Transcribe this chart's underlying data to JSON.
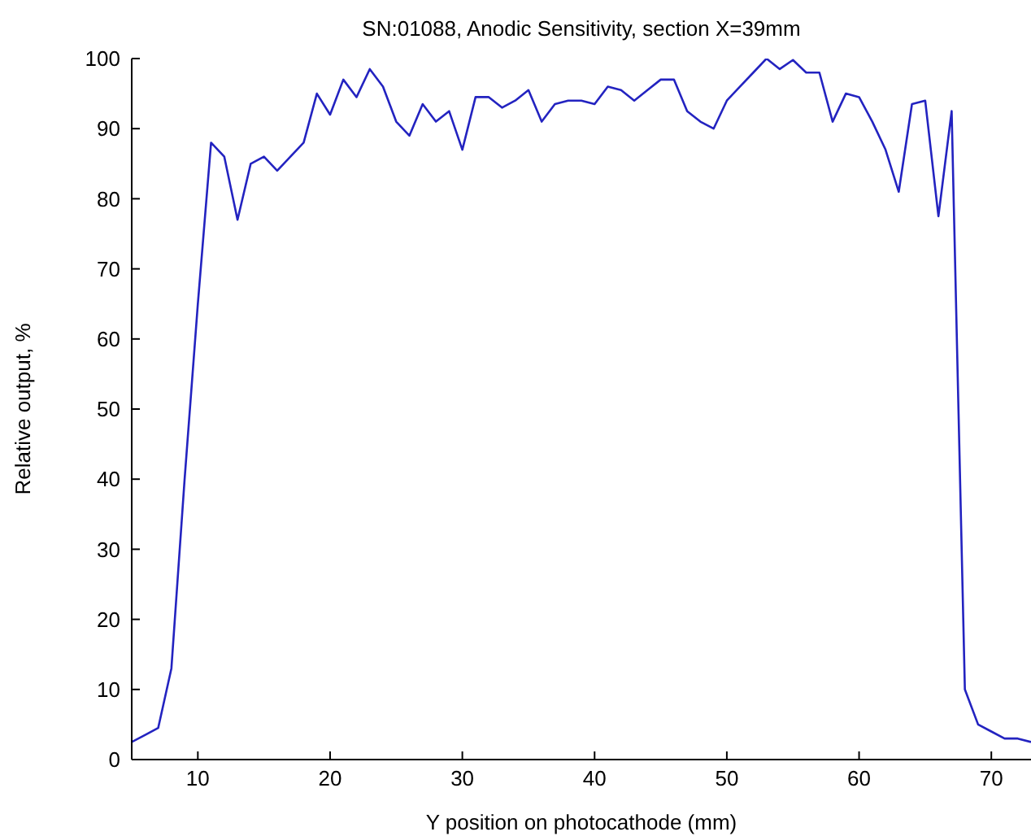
{
  "chart_data": {
    "type": "line",
    "title": "SN:01088, Anodic Sensitivity, section X=39mm",
    "xlabel": "Y position on photocathode (mm)",
    "ylabel": "Relative output, %",
    "x": [
      5,
      6,
      7,
      8,
      9,
      10,
      11,
      12,
      13,
      14,
      15,
      16,
      17,
      18,
      19,
      20,
      21,
      22,
      23,
      24,
      25,
      26,
      27,
      28,
      29,
      30,
      31,
      32,
      33,
      34,
      35,
      36,
      37,
      38,
      39,
      40,
      41,
      42,
      43,
      44,
      45,
      46,
      47,
      48,
      49,
      50,
      51,
      52,
      53,
      54,
      55,
      56,
      57,
      58,
      59,
      60,
      61,
      62,
      63,
      64,
      65,
      66,
      67,
      68,
      69,
      70,
      71,
      72,
      73
    ],
    "series": [
      {
        "color": "#2323c0",
        "values": [
          2.5,
          3.5,
          4.5,
          13,
          40,
          65,
          88,
          86,
          77,
          85,
          86,
          84,
          86,
          88,
          95,
          92,
          97,
          94.5,
          98.5,
          96,
          91,
          89,
          93.5,
          91,
          92.5,
          87,
          94.5,
          94.5,
          93,
          94,
          95.5,
          91,
          93.5,
          94,
          94,
          93.5,
          96,
          95.5,
          94,
          95.5,
          97,
          97,
          92.5,
          91,
          90,
          94,
          96,
          98,
          100,
          98.5,
          99.8,
          98,
          98,
          91,
          95,
          94.5,
          91,
          87,
          81,
          93.5,
          94,
          77.5,
          92.5,
          10,
          5,
          4,
          3,
          3,
          2.5
        ]
      }
    ],
    "xlim": [
      5,
      73
    ],
    "xticks": [
      10,
      20,
      30,
      40,
      50,
      60,
      70
    ],
    "ylim": [
      0,
      100
    ],
    "yticks": [
      0,
      10,
      20,
      30,
      40,
      50,
      60,
      70,
      80,
      90,
      100
    ],
    "grid": false,
    "marker": "none",
    "line_style": "solid"
  }
}
